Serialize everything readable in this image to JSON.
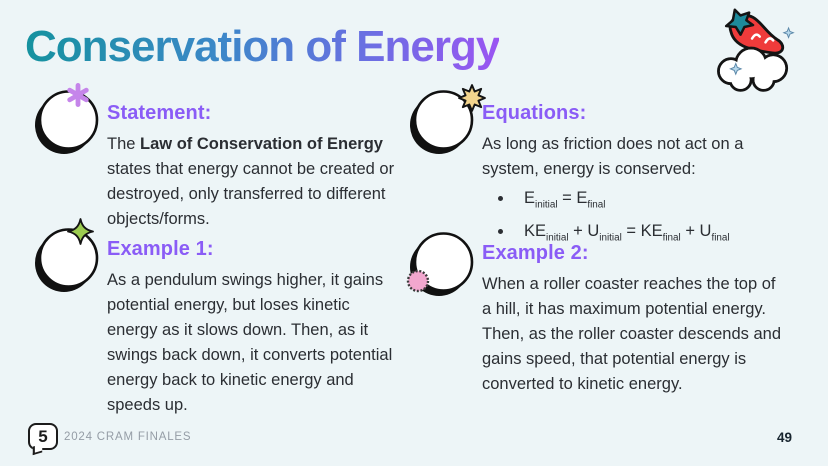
{
  "title": "Conservation of Energy",
  "page_number": "49",
  "footer": {
    "logo_text": "5",
    "brand": "2024 CRAM FINALES"
  },
  "colors": {
    "background": "#edf5f7",
    "title_gradient_start": "#15929f",
    "title_gradient_mid": "#4b7fd6",
    "title_gradient_end": "#9a55f2",
    "heading_purple": "#8a5cf6",
    "body_text": "#2b2e33",
    "footer_text": "#959da6",
    "sparkle_purple": "#c585ea",
    "sparkle_yellow": "#f3d58d",
    "sparkle_green": "#9ccc50",
    "sparkle_pink": "#f2a7ce",
    "chili_red": "#ef3b3b",
    "chili_stem_teal": "#1d8a9b"
  },
  "sections": {
    "statement": {
      "heading": "Statement:",
      "body_prefix": "The ",
      "body_bold": "Law of Conservation of Energy",
      "body_suffix": " states that energy cannot be created or destroyed, only transferred to different objects/forms."
    },
    "equations": {
      "heading": "Equations:",
      "intro": "As long as friction does not act on a system, energy is conserved:",
      "bullets": [
        [
          {
            "t": "E"
          },
          {
            "sub": "initial"
          },
          {
            "t": " = "
          },
          {
            "t": "E"
          },
          {
            "sub": "final"
          }
        ],
        [
          {
            "t": "KE"
          },
          {
            "sub": "initial"
          },
          {
            "t": " + "
          },
          {
            "t": "U"
          },
          {
            "sub": "initial"
          },
          {
            "t": " = "
          },
          {
            "t": "KE"
          },
          {
            "sub": "final"
          },
          {
            "t": " + "
          },
          {
            "t": "U"
          },
          {
            "sub": "final"
          }
        ]
      ]
    },
    "example1": {
      "heading": "Example 1:",
      "body": "As a pendulum swings higher, it gains potential energy, but loses kinetic energy as it slows down. Then, as it swings back down, it converts potential energy back to kinetic energy and speeds up."
    },
    "example2": {
      "heading": "Example 2:",
      "body": "When a roller coaster reaches the top of a hill, it has maximum potential energy. Then, as the roller coaster descends and gains speed, that potential energy is converted to kinetic energy."
    }
  }
}
